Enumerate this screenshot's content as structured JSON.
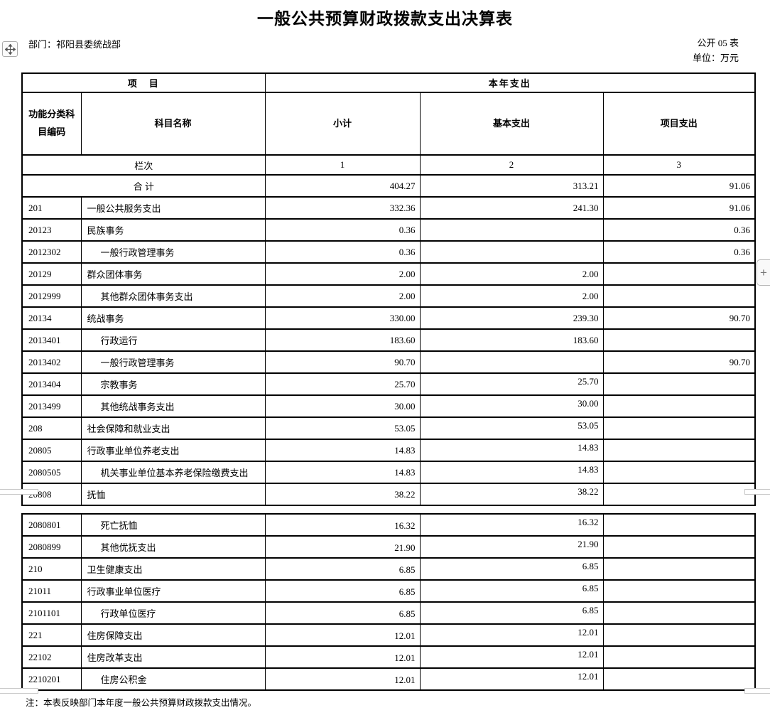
{
  "page": {
    "title": "一般公共预算财政拨款支出决算表",
    "department_label": "部门：祁阳县委统战部",
    "table_number": "公开 05 表",
    "unit_label": "单位：万元",
    "note": "注：本表反映部门本年度一般公共预算财政拨款支出情况。"
  },
  "controls": {
    "move_handle_icon": "move-cross-arrows",
    "plus_label": "+"
  },
  "colors": {
    "border": "#000000",
    "text": "#000000",
    "pagebreak_mark": "#c6c6c6"
  },
  "table": {
    "header": {
      "item_group": "项　目",
      "year_group": "本年支出",
      "col_code": "功能分类科目编码",
      "col_name": "科目名称",
      "col_subtotal": "小计",
      "col_basic": "基本支出",
      "col_project": "项目支出",
      "rank_label": "栏次",
      "rank_1": "1",
      "rank_2": "2",
      "rank_3": "3"
    },
    "page_break_after_index": 14,
    "rows": [
      {
        "merged": true,
        "label": "合 计",
        "subtotal": "404.27",
        "basic": "313.21",
        "project": "91.06"
      },
      {
        "code": "201",
        "name": "一般公共服务支出",
        "indent": false,
        "subtotal": "332.36",
        "basic": "241.30",
        "project": "91.06"
      },
      {
        "code": "20123",
        "name": "民族事务",
        "indent": false,
        "subtotal": "0.36",
        "basic": "",
        "project": "0.36"
      },
      {
        "code": "2012302",
        "name": "一般行政管理事务",
        "indent": true,
        "subtotal": "0.36",
        "basic": "",
        "project": "0.36"
      },
      {
        "code": "20129",
        "name": "群众团体事务",
        "indent": false,
        "subtotal": "2.00",
        "basic": "2.00",
        "project": ""
      },
      {
        "code": "2012999",
        "name": "其他群众团体事务支出",
        "indent": true,
        "subtotal": "2.00",
        "basic": "2.00",
        "project": ""
      },
      {
        "code": "20134",
        "name": "统战事务",
        "indent": false,
        "subtotal": "330.00",
        "basic": "239.30",
        "project": "90.70"
      },
      {
        "code": "2013401",
        "name": "行政运行",
        "indent": true,
        "subtotal": "183.60",
        "basic": "183.60",
        "project": ""
      },
      {
        "code": "2013402",
        "name": "一般行政管理事务",
        "indent": true,
        "subtotal": "90.70",
        "basic": "",
        "project": "90.70"
      },
      {
        "code": "2013404",
        "name": "宗教事务",
        "indent": true,
        "subtotal": "25.70",
        "basic": "25.70",
        "project": ""
      },
      {
        "code": "2013499",
        "name": "其他统战事务支出",
        "indent": true,
        "subtotal": "30.00",
        "basic": "30.00",
        "project": ""
      },
      {
        "code": "208",
        "name": "社会保障和就业支出",
        "indent": false,
        "subtotal": "53.05",
        "basic": "53.05",
        "project": ""
      },
      {
        "code": "20805",
        "name": "行政事业单位养老支出",
        "indent": false,
        "subtotal": "14.83",
        "basic": "14.83",
        "project": ""
      },
      {
        "code": "2080505",
        "name": "机关事业单位基本养老保险缴费支出",
        "indent": true,
        "subtotal": "14.83",
        "basic": "14.83",
        "project": ""
      },
      {
        "code": "20808",
        "name": "抚恤",
        "indent": false,
        "subtotal": "38.22",
        "basic": "38.22",
        "project": ""
      },
      {
        "code": "2080801",
        "name": "死亡抚恤",
        "indent": true,
        "subtotal": "16.32",
        "basic": "16.32",
        "project": ""
      },
      {
        "code": "2080899",
        "name": "其他优抚支出",
        "indent": true,
        "subtotal": "21.90",
        "basic": "21.90",
        "project": ""
      },
      {
        "code": "210",
        "name": "卫生健康支出",
        "indent": false,
        "subtotal": "6.85",
        "basic": "6.85",
        "project": ""
      },
      {
        "code": "21011",
        "name": "行政事业单位医疗",
        "indent": false,
        "subtotal": "6.85",
        "basic": "6.85",
        "project": ""
      },
      {
        "code": "2101101",
        "name": "行政单位医疗",
        "indent": true,
        "subtotal": "6.85",
        "basic": "6.85",
        "project": ""
      },
      {
        "code": "221",
        "name": "住房保障支出",
        "indent": false,
        "subtotal": "12.01",
        "basic": "12.01",
        "project": ""
      },
      {
        "code": "22102",
        "name": "住房改革支出",
        "indent": false,
        "subtotal": "12.01",
        "basic": "12.01",
        "project": ""
      },
      {
        "code": "2210201",
        "name": "住房公积金",
        "indent": true,
        "subtotal": "12.01",
        "basic": "12.01",
        "project": ""
      }
    ]
  }
}
